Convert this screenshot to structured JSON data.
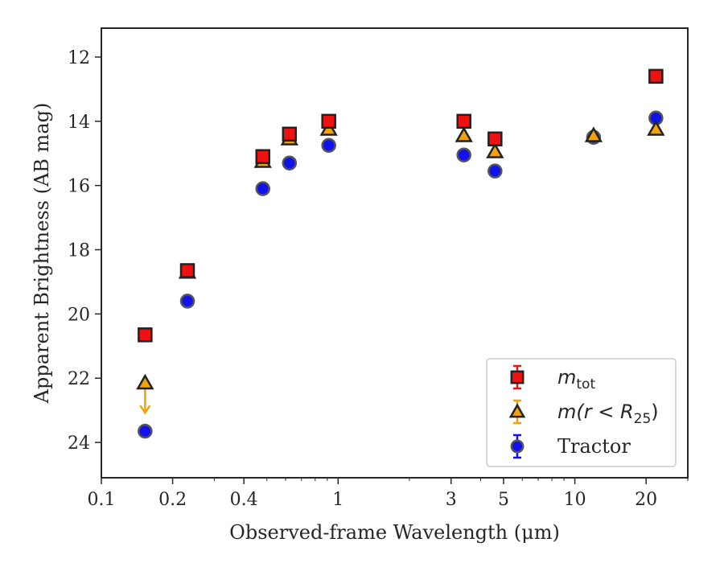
{
  "chart_data": {
    "type": "scatter",
    "xlabel": "Observed-frame Wavelength (μm)",
    "ylabel": "Apparent Brightness (AB mag)",
    "x_scale": "log",
    "xlim": [
      0.1,
      30
    ],
    "ylim": [
      25.1,
      11.1
    ],
    "y_inverted": true,
    "x_ticks": [
      {
        "value": 0.1,
        "label": "0.1"
      },
      {
        "value": 0.2,
        "label": "0.2"
      },
      {
        "value": 0.4,
        "label": "0.4"
      },
      {
        "value": 1,
        "label": "1"
      },
      {
        "value": 3,
        "label": "3"
      },
      {
        "value": 5,
        "label": "5"
      },
      {
        "value": 10,
        "label": "10"
      },
      {
        "value": 20,
        "label": "20"
      }
    ],
    "y_ticks": [
      {
        "value": 12,
        "label": "12"
      },
      {
        "value": 14,
        "label": "14"
      },
      {
        "value": 16,
        "label": "16"
      },
      {
        "value": 18,
        "label": "18"
      },
      {
        "value": 20,
        "label": "20"
      },
      {
        "value": 22,
        "label": "22"
      },
      {
        "value": 24,
        "label": "24"
      }
    ],
    "grid": false,
    "legend_position": "lower-right",
    "series": [
      {
        "name": "m_tot",
        "legend_label": "m",
        "legend_sub": "tot",
        "marker": "square",
        "color": "#ee1111",
        "x": [
          0.153,
          0.231,
          0.481,
          0.623,
          0.913,
          3.4,
          4.6,
          22
        ],
        "y": [
          20.65,
          18.65,
          15.1,
          14.4,
          14.0,
          14.0,
          14.55,
          12.6
        ]
      },
      {
        "name": "m(r < R25)",
        "legend_label": "m(r < R",
        "legend_sub": "25",
        "legend_suffix": ")",
        "marker": "triangle",
        "color": "#f5a10a",
        "upper_limit": [
          true,
          false,
          false,
          false,
          false,
          false,
          false,
          false,
          false
        ],
        "x": [
          0.153,
          0.231,
          0.481,
          0.623,
          0.913,
          3.4,
          4.6,
          12.0,
          22
        ],
        "y": [
          22.15,
          18.7,
          15.25,
          14.55,
          14.25,
          14.45,
          14.95,
          14.45,
          14.25
        ]
      },
      {
        "name": "Tractor",
        "legend_label": "Tractor",
        "marker": "circle",
        "color": "#1111ee",
        "x": [
          0.153,
          0.231,
          0.481,
          0.623,
          0.913,
          3.4,
          4.6,
          12.0,
          22
        ],
        "y": [
          23.65,
          19.6,
          16.1,
          15.3,
          14.75,
          15.05,
          15.55,
          14.5,
          13.9
        ]
      }
    ]
  }
}
